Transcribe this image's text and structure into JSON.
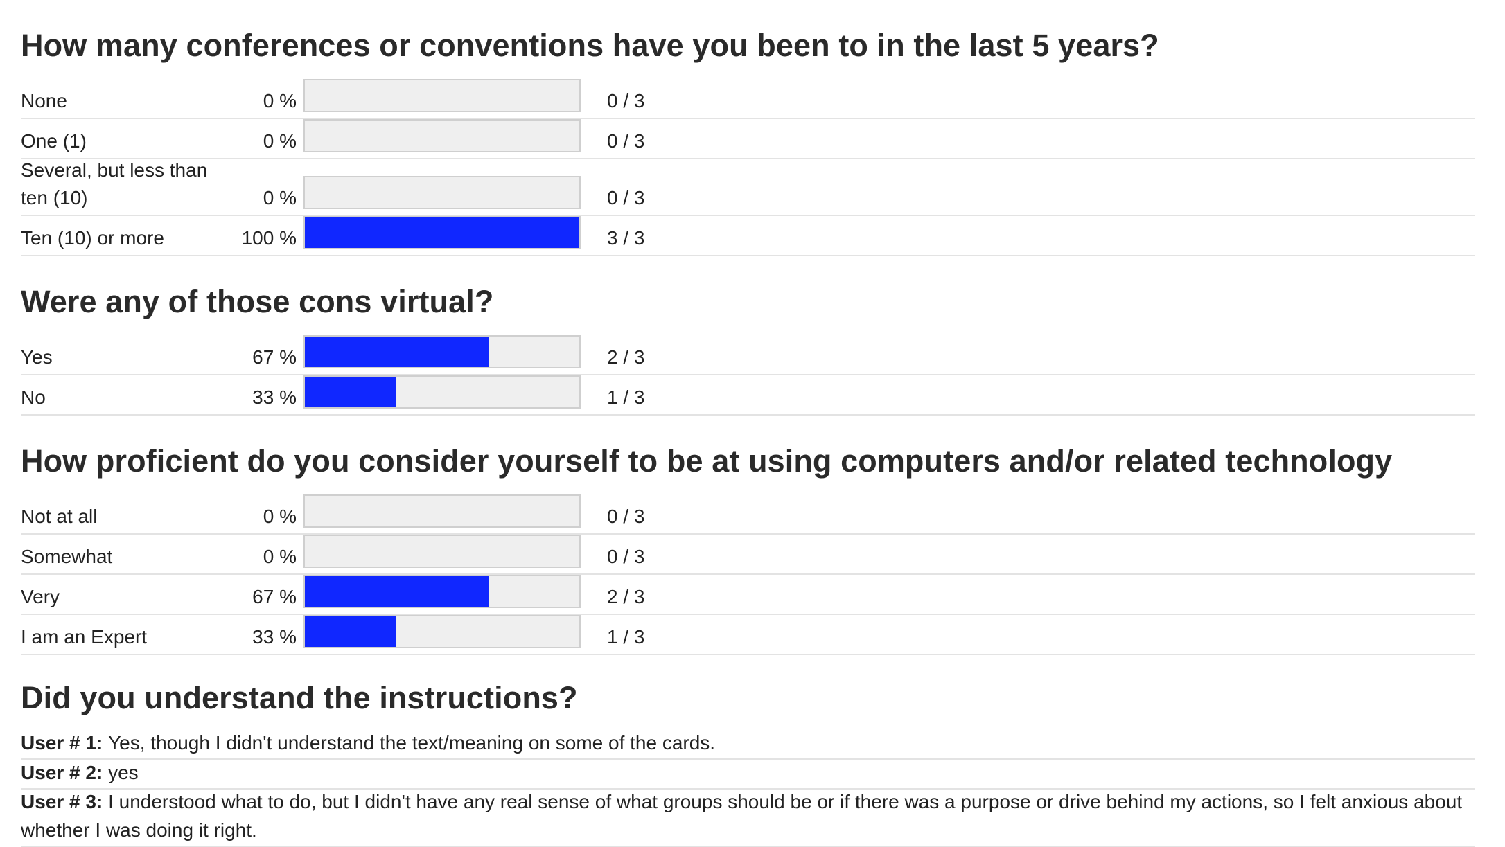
{
  "questions": [
    {
      "title": "How many conferences or conventions have you been to in the last 5 years?",
      "options": [
        {
          "label": "None",
          "percent": "0 %",
          "fraction": 0,
          "count": "0 / 3"
        },
        {
          "label": "One (1)",
          "percent": "0 %",
          "fraction": 0,
          "count": "0 / 3"
        },
        {
          "label": "Several, but less than ten (10)",
          "percent": "0 %",
          "fraction": 0,
          "count": "0 / 3"
        },
        {
          "label": "Ten (10) or more",
          "percent": "100 %",
          "fraction": 1,
          "count": "3 / 3"
        }
      ]
    },
    {
      "title": "Were any of those cons virtual?",
      "options": [
        {
          "label": "Yes",
          "percent": "67 %",
          "fraction": 0.67,
          "count": "2 / 3"
        },
        {
          "label": "No",
          "percent": "33 %",
          "fraction": 0.33,
          "count": "1 / 3"
        }
      ]
    },
    {
      "title": "How proficient do you consider yourself to be at using computers and/or related technology",
      "options": [
        {
          "label": "Not at all",
          "percent": "0 %",
          "fraction": 0,
          "count": "0 / 3"
        },
        {
          "label": "Somewhat",
          "percent": "0 %",
          "fraction": 0,
          "count": "0 / 3"
        },
        {
          "label": "Very",
          "percent": "67 %",
          "fraction": 0.67,
          "count": "2 / 3"
        },
        {
          "label": "I am an Expert",
          "percent": "33 %",
          "fraction": 0.33,
          "count": "1 / 3"
        }
      ]
    },
    {
      "title": "Did you understand the instructions?",
      "answers": [
        {
          "user": "User # 1:",
          "text": "Yes, though I didn't understand the text/meaning on some of the cards."
        },
        {
          "user": "User # 2:",
          "text": "yes"
        },
        {
          "user": "User # 3:",
          "text": "I understood what to do, but I didn't have any real sense of what groups should be or if there was a purpose or drive behind my actions, so I felt anxious about whether I was doing it right."
        }
      ]
    }
  ],
  "colors": {
    "bar_fill": "#1027ff",
    "bar_track": "#efefef"
  }
}
